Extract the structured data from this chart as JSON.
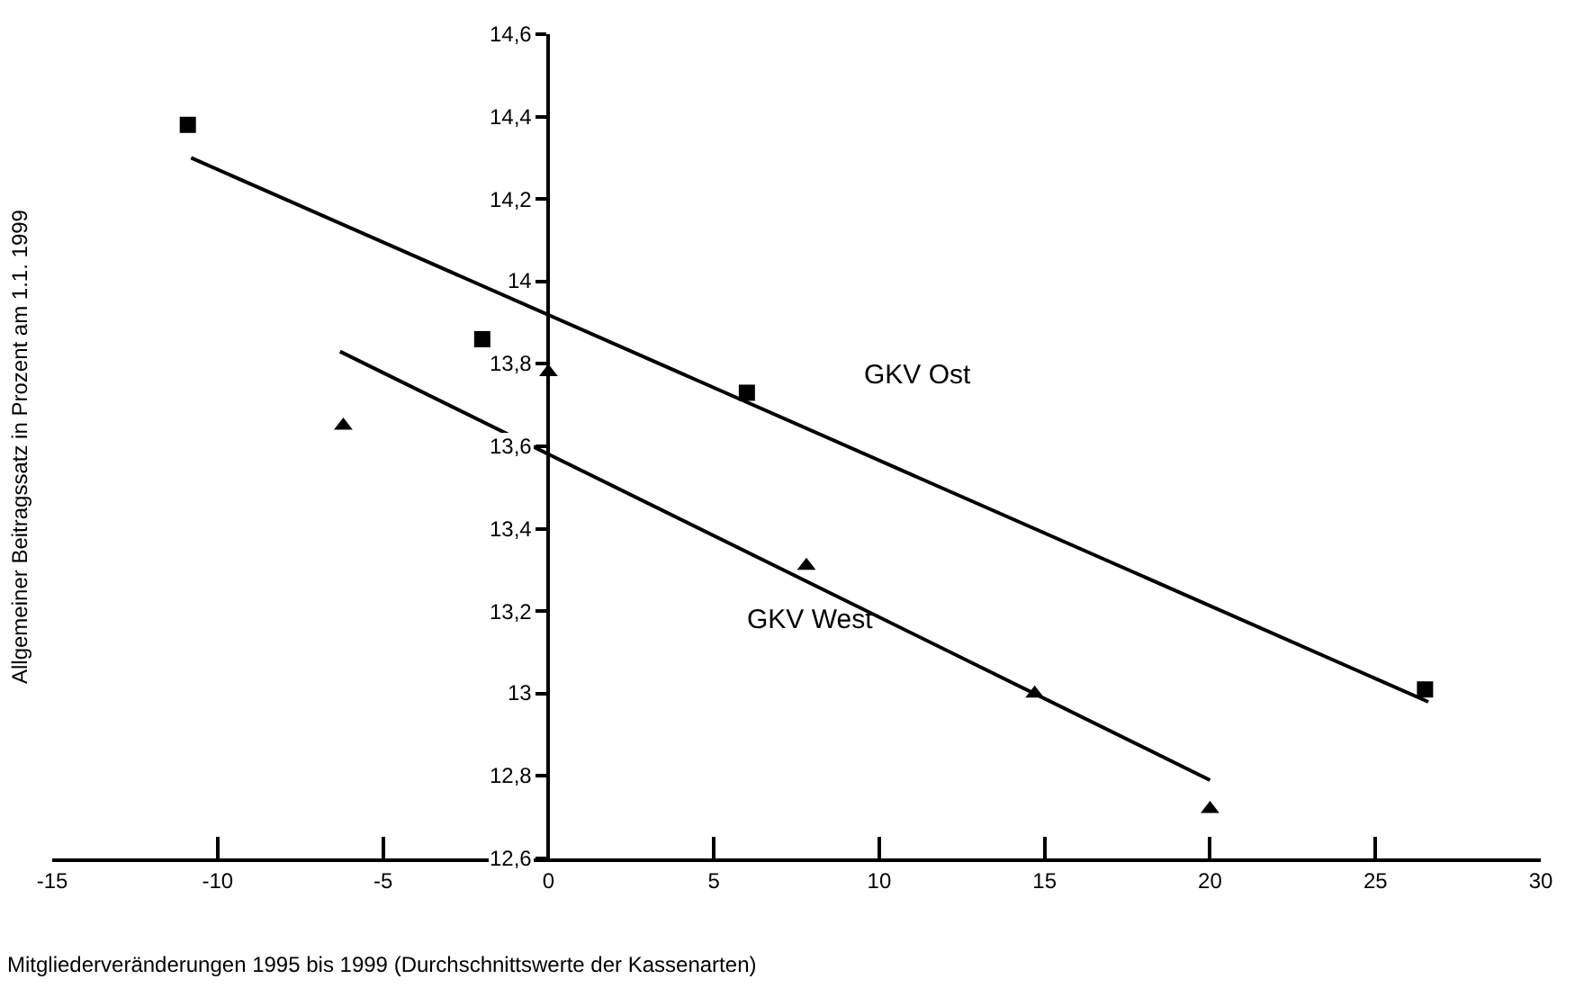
{
  "chart_data": {
    "type": "scatter",
    "xlabel": "Mitgliederveränderungen 1995 bis 1999 (Durchschnittswerte der Kassenarten)",
    "ylabel": "Allgemeiner Beitragssatz in Prozent am 1.1. 1999",
    "xlim": [
      -15,
      30
    ],
    "xticks": [
      -15,
      -10,
      -5,
      0,
      5,
      10,
      15,
      20,
      25,
      30
    ],
    "ylim": [
      12.6,
      14.6
    ],
    "yticks": [
      {
        "value": 12.6,
        "label": "12,6"
      },
      {
        "value": 12.8,
        "label": "12,8"
      },
      {
        "value": 13,
        "label": "13"
      },
      {
        "value": 13.2,
        "label": "13,2"
      },
      {
        "value": 13.4,
        "label": "13,4"
      },
      {
        "value": 13.6,
        "label": "13,6"
      },
      {
        "value": 13.8,
        "label": "13,8"
      },
      {
        "value": 14,
        "label": "14"
      },
      {
        "value": 14.2,
        "label": "14,2"
      },
      {
        "value": 14.4,
        "label": "14,4"
      },
      {
        "value": 14.6,
        "label": "14,6"
      }
    ],
    "legend": false,
    "series": [
      {
        "marker": "square",
        "color": "#000000",
        "x": [
          -10.9,
          -2,
          6,
          26.5
        ],
        "values": [
          14.38,
          13.86,
          13.73,
          13.01
        ]
      },
      {
        "marker": "triangle",
        "color": "#000000",
        "x": [
          -6.2,
          0,
          7.8,
          14.7,
          20
        ],
        "values": [
          13.65,
          13.78,
          13.31,
          13.0,
          12.72
        ]
      },
      {
        "type": "line",
        "name": "GKV Ost",
        "marker": "none",
        "line_style": "solid",
        "color": "#000000",
        "x": [
          -10.8,
          26.6
        ],
        "values": [
          14.3,
          12.98
        ]
      },
      {
        "type": "line",
        "name": "GKV West",
        "marker": "none",
        "line_style": "solid",
        "color": "#000000",
        "x": [
          -6.3,
          20
        ],
        "values": [
          13.83,
          12.79
        ]
      }
    ]
  }
}
